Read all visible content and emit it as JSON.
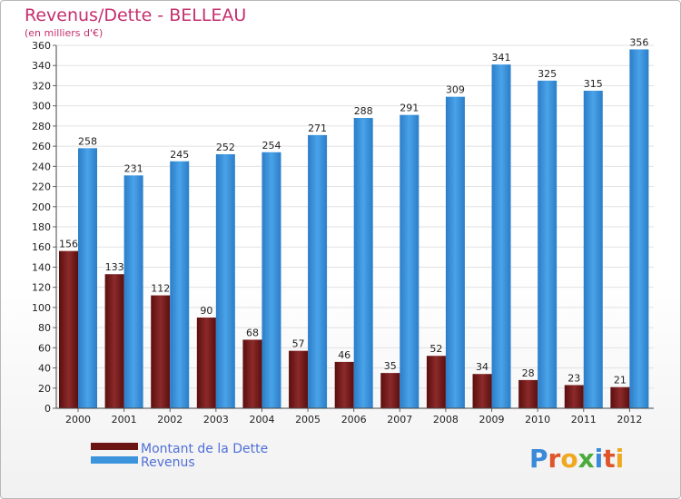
{
  "chart_data": {
    "type": "bar",
    "title": "Revenus/Dette - BELLEAU",
    "subtitle": "(en milliers d'€)",
    "categories": [
      "2000",
      "2001",
      "2002",
      "2003",
      "2004",
      "2005",
      "2006",
      "2007",
      "2008",
      "2009",
      "2010",
      "2011",
      "2012"
    ],
    "series": [
      {
        "name": "Montant de la Dette",
        "color": "#7a1e1e",
        "values": [
          156,
          133,
          112,
          90,
          68,
          57,
          46,
          35,
          52,
          34,
          28,
          23,
          21
        ]
      },
      {
        "name": "Revenus",
        "color": "#3c94dc",
        "values": [
          258,
          231,
          245,
          252,
          254,
          271,
          288,
          291,
          309,
          341,
          325,
          315,
          356
        ]
      }
    ],
    "ylim": [
      0,
      360
    ],
    "yticks": [
      0,
      20,
      40,
      60,
      80,
      100,
      120,
      140,
      160,
      180,
      200,
      220,
      240,
      260,
      280,
      300,
      320,
      340,
      360
    ],
    "grid": true,
    "legend_position": "bottom-left"
  },
  "brand": {
    "letters": [
      "P",
      "r",
      "o",
      "x",
      "i",
      "t",
      "i"
    ],
    "colors": [
      "#3a8ad9",
      "#e0542a",
      "#f0a91e",
      "#4aab3a",
      "#3a8ad9",
      "#e0542a",
      "#f0a91e"
    ]
  }
}
